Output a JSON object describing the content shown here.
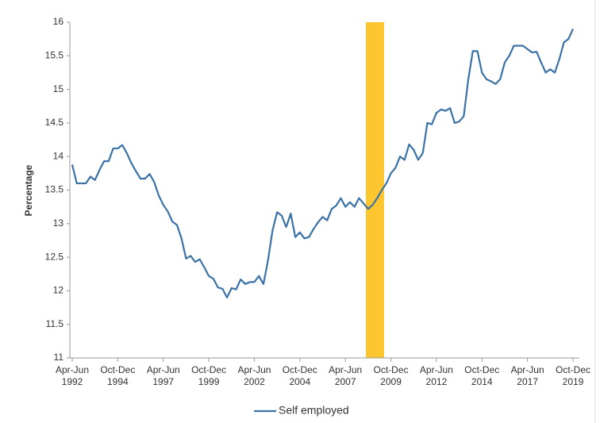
{
  "chart_data": {
    "type": "line",
    "y_axis_label": "Percentage",
    "categories": [
      "Apr-Jun 1992",
      null,
      null,
      null,
      null,
      null,
      null,
      null,
      null,
      null,
      "Oct-Dec 1994",
      null,
      null,
      null,
      null,
      null,
      null,
      null,
      null,
      null,
      "Apr-Jun 1997",
      null,
      null,
      null,
      null,
      null,
      null,
      null,
      null,
      null,
      "Oct-Dec 1999",
      null,
      null,
      null,
      null,
      null,
      null,
      null,
      null,
      null,
      "Apr-Jun 2002",
      null,
      null,
      null,
      null,
      null,
      null,
      null,
      null,
      null,
      "Oct-Dec 2004",
      null,
      null,
      null,
      null,
      null,
      null,
      null,
      null,
      null,
      "Apr-Jun 2007",
      null,
      null,
      null,
      null,
      null,
      null,
      null,
      null,
      null,
      "Oct-Dec 2009",
      null,
      null,
      null,
      null,
      null,
      null,
      null,
      null,
      null,
      "Apr-Jun 2012",
      null,
      null,
      null,
      null,
      null,
      null,
      null,
      null,
      null,
      "Oct-Dec 2014",
      null,
      null,
      null,
      null,
      null,
      null,
      null,
      null,
      null,
      "Apr-Jun 2017",
      null,
      null,
      null,
      null,
      null,
      null,
      null,
      null,
      null,
      "Oct-Dec 2019"
    ],
    "series": [
      {
        "name": "Self employed",
        "color": "#3a72a8",
        "values": [
          13.88,
          13.6,
          13.6,
          13.6,
          13.7,
          13.65,
          13.8,
          13.93,
          13.93,
          14.12,
          14.12,
          14.17,
          14.05,
          13.9,
          13.78,
          13.67,
          13.67,
          13.74,
          13.62,
          13.42,
          13.28,
          13.18,
          13.03,
          12.98,
          12.78,
          12.48,
          12.52,
          12.43,
          12.47,
          12.35,
          12.22,
          12.18,
          12.05,
          12.03,
          11.9,
          12.04,
          12.02,
          12.17,
          12.1,
          12.13,
          12.13,
          12.22,
          12.1,
          12.45,
          12.9,
          13.17,
          13.12,
          12.95,
          13.15,
          12.8,
          12.87,
          12.78,
          12.8,
          12.92,
          13.02,
          13.1,
          13.05,
          13.22,
          13.27,
          13.38,
          13.25,
          13.32,
          13.25,
          13.38,
          13.3,
          13.22,
          13.28,
          13.38,
          13.5,
          13.6,
          13.75,
          13.83,
          14.0,
          13.95,
          14.18,
          14.1,
          13.95,
          14.05,
          14.5,
          14.48,
          14.65,
          14.7,
          14.68,
          14.72,
          14.5,
          14.52,
          14.6,
          15.15,
          15.57,
          15.57,
          15.25,
          15.15,
          15.12,
          15.08,
          15.15,
          15.4,
          15.5,
          15.65,
          15.65,
          15.65,
          15.6,
          15.55,
          15.56,
          15.4,
          15.25,
          15.3,
          15.25,
          15.45,
          15.7,
          15.75,
          15.9
        ]
      }
    ],
    "highlight": {
      "from": 65,
      "to": 68,
      "color": "#fdc52e"
    },
    "ylim": [
      11,
      16
    ],
    "yticks": [
      11,
      11.5,
      12,
      12.5,
      13,
      13.5,
      14,
      14.5,
      15,
      15.5,
      16
    ],
    "grid": false,
    "legend": "bottom"
  }
}
